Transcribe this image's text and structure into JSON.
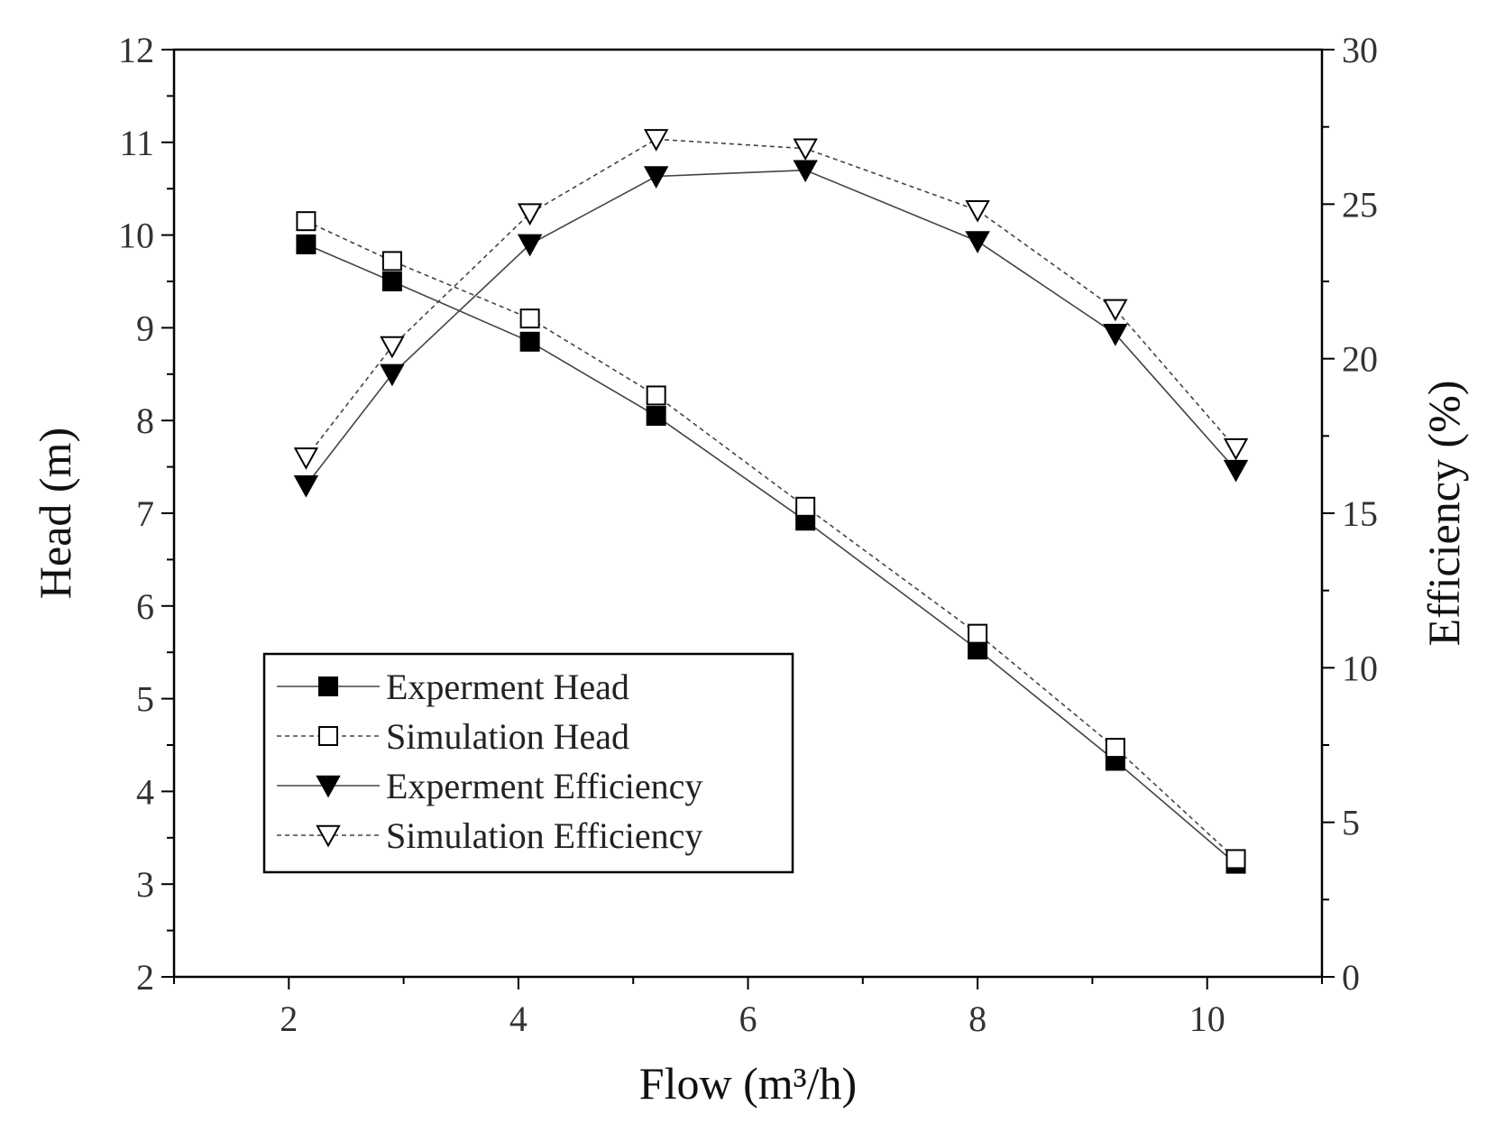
{
  "chart_data": {
    "type": "line",
    "title": "",
    "x": [
      2.15,
      2.9,
      4.1,
      5.2,
      6.5,
      8.0,
      9.2,
      10.25
    ],
    "xlabel": "Flow (m³/h)",
    "xlim": [
      1,
      11
    ],
    "xticks": [
      "2",
      "4",
      "6",
      "8",
      "10"
    ],
    "ylabel": "Head (m)",
    "ylim": [
      2,
      12
    ],
    "yticks": [
      "2",
      "3",
      "4",
      "5",
      "6",
      "7",
      "8",
      "9",
      "10",
      "11",
      "12"
    ],
    "y2label": "Efficiency (%)",
    "y2lim": [
      0,
      30
    ],
    "y2ticks": [
      "0",
      "5",
      "10",
      "15",
      "20",
      "25",
      "30"
    ],
    "series": [
      {
        "name": "Experment Head",
        "axis": "left",
        "marker": "square-filled",
        "line": "solid",
        "values": [
          9.9,
          9.5,
          8.85,
          8.05,
          6.92,
          5.53,
          4.33,
          3.22
        ]
      },
      {
        "name": "Simulation Head",
        "axis": "left",
        "marker": "square-open",
        "line": "dashed",
        "values": [
          10.15,
          9.72,
          9.1,
          8.27,
          7.07,
          5.7,
          4.47,
          3.27
        ]
      },
      {
        "name": "Experment Efficiency",
        "axis": "right",
        "marker": "triangle-down-filled",
        "line": "solid",
        "values": [
          15.9,
          19.5,
          23.7,
          25.9,
          26.1,
          23.8,
          20.8,
          16.4
        ]
      },
      {
        "name": "Simulation Efficiency",
        "axis": "right",
        "marker": "triangle-down-open",
        "line": "dashed",
        "values": [
          16.8,
          20.4,
          24.7,
          27.1,
          26.8,
          24.8,
          21.6,
          17.1
        ]
      }
    ],
    "legend": "lower-left"
  },
  "colors": {
    "marker": "#000000",
    "axis": "#000000",
    "text": "#333333"
  }
}
